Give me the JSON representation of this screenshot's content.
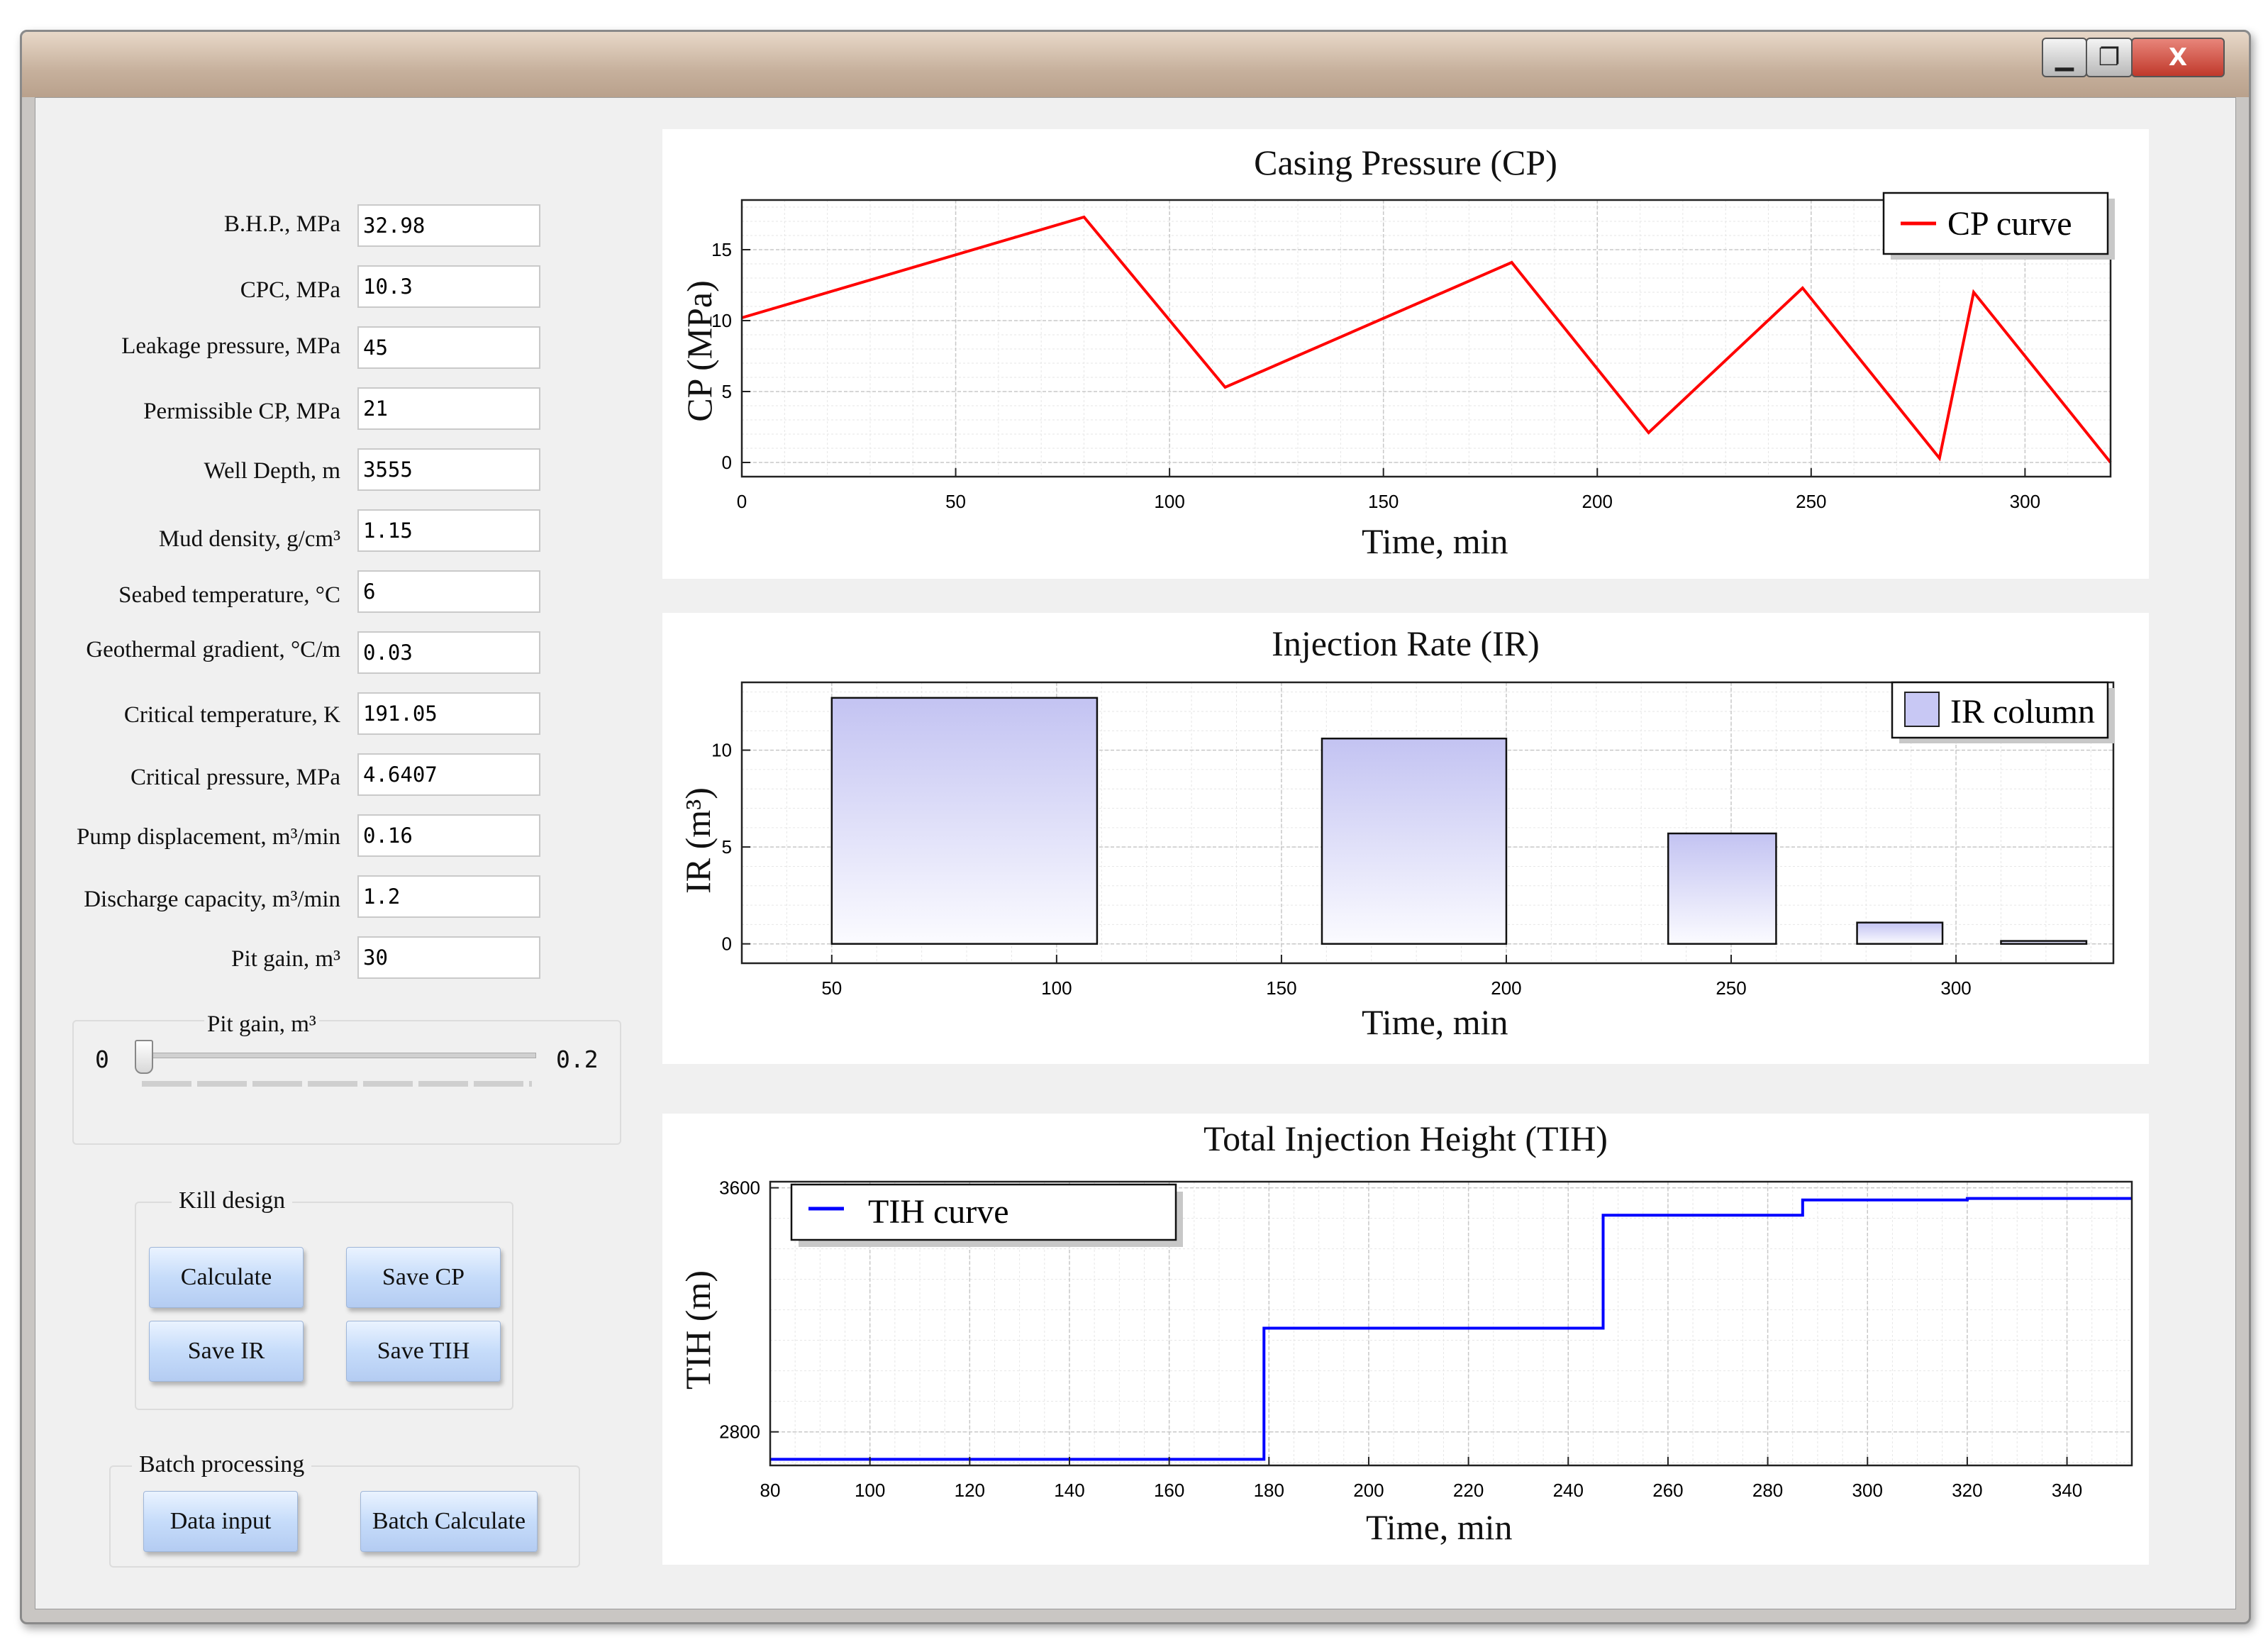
{
  "window": {
    "controls": {
      "minimize": "▁",
      "maximize": "❐",
      "close": "X"
    }
  },
  "params": [
    {
      "label": "B.H.P., MPa",
      "value": "32.98"
    },
    {
      "label": "CPC, MPa",
      "value": "10.3"
    },
    {
      "label": "Leakage pressure, MPa",
      "value": "45"
    },
    {
      "label": "Permissible CP, MPa",
      "value": "21"
    },
    {
      "label": "Well Depth, m",
      "value": "3555"
    },
    {
      "label": "Mud density, g/cm³",
      "value": "1.15"
    },
    {
      "label": "Seabed temperature, °C",
      "value": "6"
    },
    {
      "label": "Geothermal gradient, °C/m",
      "value": "0.03"
    },
    {
      "label": "Critical temperature, K",
      "value": "191.05"
    },
    {
      "label": "Critical pressure, MPa",
      "value": "4.6407"
    },
    {
      "label": "Pump displacement, m³/min",
      "value": "0.16"
    },
    {
      "label": "Discharge capacity, m³/min",
      "value": "1.2"
    },
    {
      "label": "Pit gain, m³",
      "value": "30"
    }
  ],
  "slider": {
    "title": "Pit gain, m³",
    "min_label": "0",
    "max_label": "0.2",
    "value": 0
  },
  "kill_design": {
    "title": "Kill design",
    "calculate": "Calculate",
    "save_cp": "Save CP",
    "save_ir": "Save IR",
    "save_tih": "Save TIH"
  },
  "batch": {
    "title": "Batch processing",
    "data_input": "Data input",
    "batch_calculate": "Batch Calculate"
  },
  "charts": {
    "cp": {
      "title": "Casing Pressure (CP)",
      "xlabel": "Time, min",
      "ylabel": "CP (MPa)",
      "legend": "CP curve"
    },
    "ir": {
      "title": "Injection Rate (IR)",
      "xlabel": "Time, min",
      "ylabel": "IR (m³)",
      "legend": "IR column"
    },
    "tih": {
      "title": "Total Injection Height (TIH)",
      "xlabel": "Time, min",
      "ylabel": "TIH (m)",
      "legend": "TIH curve"
    }
  },
  "chart_data": [
    {
      "type": "line",
      "title": "Casing Pressure (CP)",
      "xlabel": "Time, min",
      "ylabel": "CP (MPa)",
      "xlim": [
        0,
        320
      ],
      "ylim": [
        -1,
        18.5
      ],
      "xticks": [
        0,
        50,
        100,
        150,
        200,
        250,
        300
      ],
      "yticks": [
        0,
        5,
        10,
        15
      ],
      "grid": true,
      "legend_position": "top-right",
      "series": [
        {
          "name": "CP curve",
          "color": "#ff0000",
          "x": [
            0,
            80,
            113,
            180,
            212,
            248,
            280,
            288,
            320
          ],
          "y": [
            10.2,
            17.3,
            5.3,
            14.1,
            2.1,
            12.3,
            0.3,
            12.0,
            0.0
          ]
        }
      ]
    },
    {
      "type": "bar",
      "title": "Injection Rate (IR)",
      "xlabel": "Time, min",
      "ylabel": "IR (m³)",
      "xlim": [
        30,
        335
      ],
      "ylim": [
        -1,
        13.5
      ],
      "xticks": [
        50,
        100,
        150,
        200,
        250,
        300
      ],
      "yticks": [
        0,
        5,
        10
      ],
      "grid": true,
      "legend_position": "top-right",
      "series": [
        {
          "name": "IR column",
          "color": "#c8c8f4",
          "bars": [
            {
              "x0": 50,
              "x1": 109,
              "value": 12.7
            },
            {
              "x0": 159,
              "x1": 200,
              "value": 10.6
            },
            {
              "x0": 236,
              "x1": 260,
              "value": 5.7
            },
            {
              "x0": 278,
              "x1": 297,
              "value": 1.1
            },
            {
              "x0": 310,
              "x1": 329,
              "value": 0.0
            }
          ]
        }
      ]
    },
    {
      "type": "line",
      "title": "Total Injection Height (TIH)",
      "xlabel": "Time, min",
      "ylabel": "TIH (m)",
      "xlim": [
        80,
        353
      ],
      "ylim": [
        2690,
        3620
      ],
      "xticks": [
        80,
        100,
        120,
        140,
        160,
        180,
        200,
        220,
        240,
        260,
        280,
        300,
        320,
        340
      ],
      "yticks": [
        2800,
        3600
      ],
      "grid": true,
      "legend_position": "top-left",
      "series": [
        {
          "name": "TIH curve",
          "color": "#0000ff",
          "step": true,
          "x": [
            80,
            179,
            179,
            247,
            247,
            287,
            287,
            320,
            320,
            353
          ],
          "y": [
            2710,
            2710,
            3140,
            3140,
            3510,
            3510,
            3560,
            3560,
            3565,
            3565
          ]
        }
      ]
    }
  ]
}
